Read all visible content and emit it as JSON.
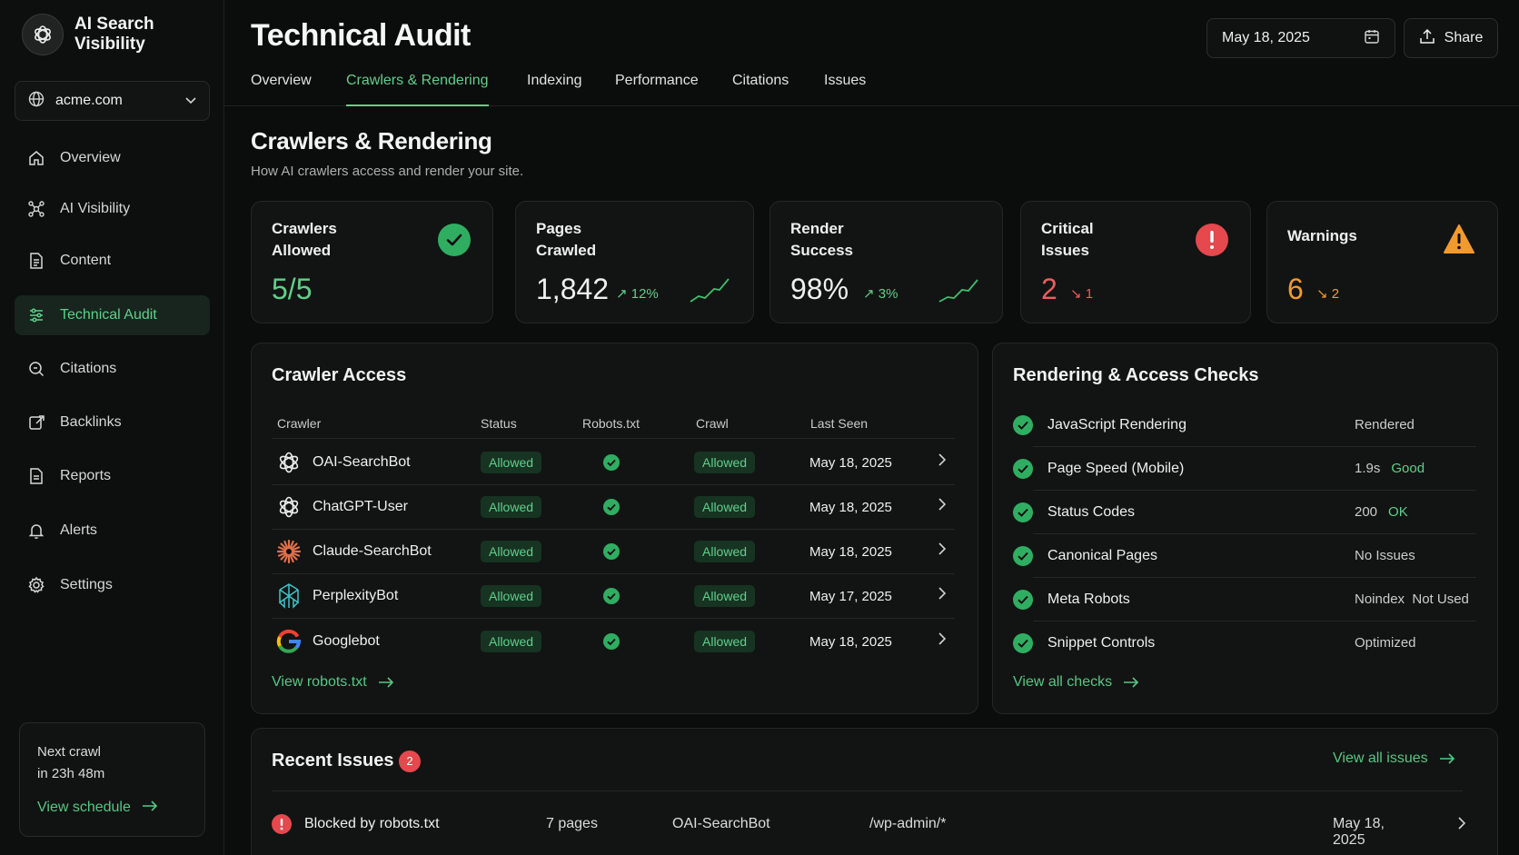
{
  "app": {
    "name": "AI Search\nVisibility"
  },
  "domain_selector": {
    "value": "acme.com"
  },
  "sidebar": {
    "items": [
      {
        "label": "Overview",
        "icon": "home-icon"
      },
      {
        "label": "AI Visibility",
        "icon": "network-icon"
      },
      {
        "label": "Content",
        "icon": "document-icon"
      },
      {
        "label": "Technical Audit",
        "icon": "sliders-icon",
        "active": true
      },
      {
        "label": "Citations",
        "icon": "search-icon"
      },
      {
        "label": "Backlinks",
        "icon": "link-edit-icon"
      },
      {
        "label": "Reports",
        "icon": "report-icon"
      },
      {
        "label": "Alerts",
        "icon": "bell-icon"
      },
      {
        "label": "Settings",
        "icon": "gear-icon"
      }
    ],
    "next_crawl": {
      "line1": "Next crawl",
      "line2": "in 23h 48m",
      "link": "View schedule"
    }
  },
  "header": {
    "title": "Technical Audit",
    "date": "May 18, 2025",
    "share": "Share",
    "tabs": [
      "Overview",
      "Crawlers & Rendering",
      "Indexing",
      "Performance",
      "Citations",
      "Issues"
    ],
    "active_tab": "Crawlers & Rendering"
  },
  "section": {
    "title": "Crawlers & Rendering",
    "subtitle": "How AI crawlers access and render your site."
  },
  "stats": [
    {
      "label": "Crawlers\nAllowed",
      "value": "5/5",
      "delta": ""
    },
    {
      "label": "Pages\nCrawled",
      "value": "1,842",
      "delta": "↗ 12%"
    },
    {
      "label": "Render\nSuccess",
      "value": "98%",
      "delta": "↗ 3%"
    },
    {
      "label": "Critical\nIssues",
      "value": "2",
      "delta": "↘ 1"
    },
    {
      "label": "Warnings",
      "value": "6",
      "delta": "↘ 2"
    }
  ],
  "colors": {
    "accent": "#5fcf8a",
    "danger": "#e5484d",
    "warning": "#f29a2e",
    "background": "#0b0c0c"
  },
  "crawler_access": {
    "title": "Crawler Access",
    "columns": [
      "Crawler",
      "Status",
      "Robots.txt",
      "Crawl",
      "Last Seen"
    ],
    "rows": [
      {
        "name": "OAI-SearchBot",
        "status": "Allowed",
        "crawl": "Allowed",
        "last_seen": "May 18, 2025",
        "logo": "openai-logo"
      },
      {
        "name": "ChatGPT-User",
        "status": "Allowed",
        "crawl": "Allowed",
        "last_seen": "May 18, 2025",
        "logo": "openai-logo"
      },
      {
        "name": "Claude-SearchBot",
        "status": "Allowed",
        "crawl": "Allowed",
        "last_seen": "May 18, 2025",
        "logo": "anthropic-logo"
      },
      {
        "name": "PerplexityBot",
        "status": "Allowed",
        "crawl": "Allowed",
        "last_seen": "May 17, 2025",
        "logo": "perplexity-logo"
      },
      {
        "name": "Googlebot",
        "status": "Allowed",
        "crawl": "Allowed",
        "last_seen": "May 18, 2025",
        "logo": "google-logo"
      }
    ],
    "link": "View robots.txt"
  },
  "checks": {
    "title": "Rendering & Access Checks",
    "items": [
      {
        "name": "JavaScript Rendering",
        "value": "Rendered",
        "status": ""
      },
      {
        "name": "Page Speed (Mobile)",
        "value": "1.9s",
        "status": "Good"
      },
      {
        "name": "Status Codes",
        "value": "200",
        "status": "OK"
      },
      {
        "name": "Canonical Pages",
        "value": "No Issues",
        "status": ""
      },
      {
        "name": "Meta Robots",
        "value": "Noindex  Not Used",
        "status": ""
      },
      {
        "name": "Snippet Controls",
        "value": "Optimized",
        "status": ""
      }
    ],
    "link": "View all checks"
  },
  "recent_issues": {
    "title": "Recent Issues",
    "count": "2",
    "link": "View all issues",
    "rows": [
      {
        "title": "Blocked by robots.txt",
        "pages": "7 pages",
        "crawler": "OAI-SearchBot",
        "path": "/wp-admin/*",
        "date": "May 18, 2025"
      }
    ]
  }
}
